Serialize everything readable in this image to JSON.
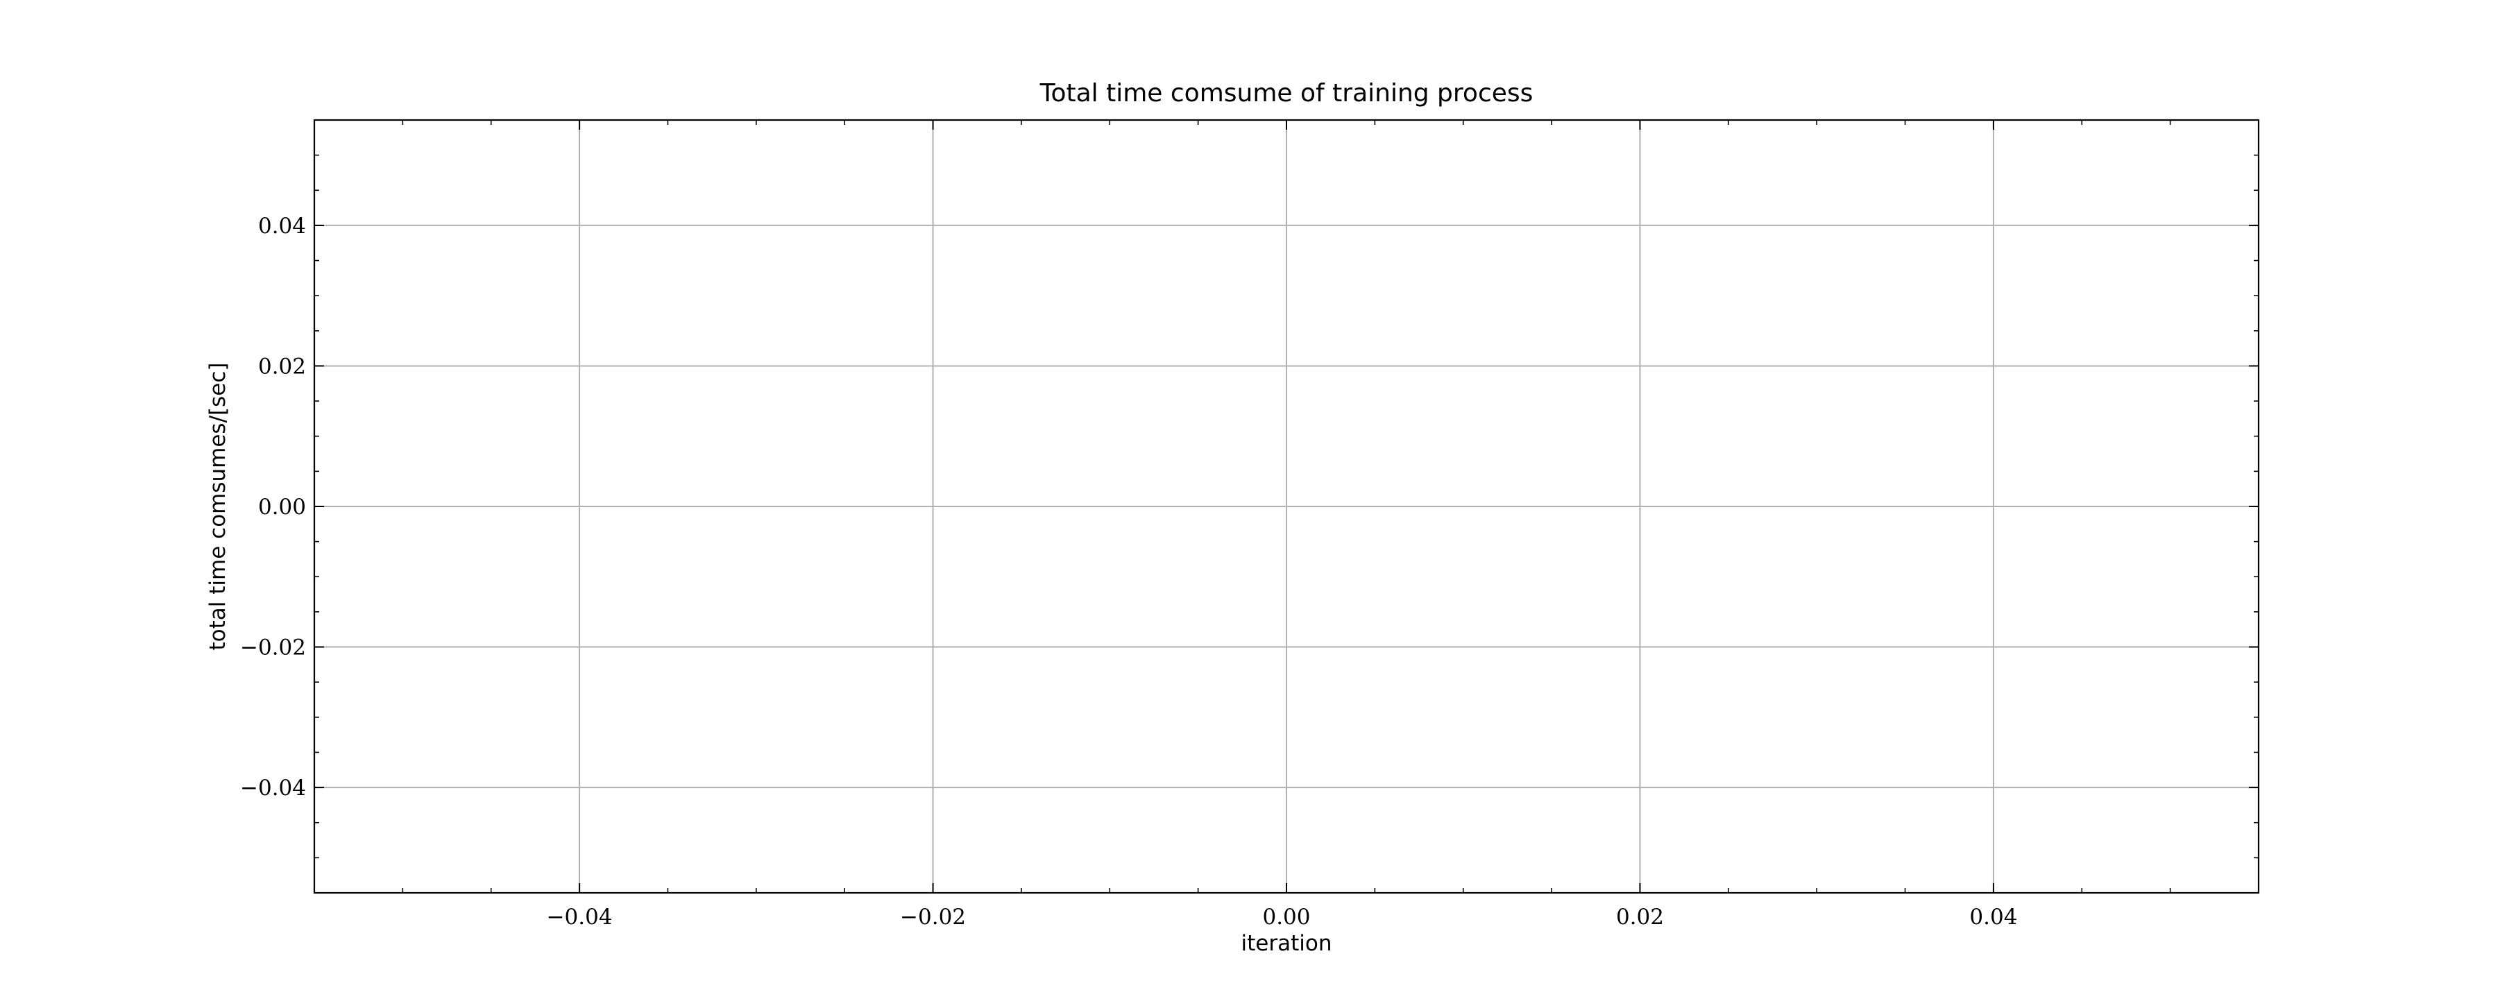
{
  "chart_data": {
    "type": "line",
    "title": "Total time comsume of training process",
    "xlabel": "iteration",
    "ylabel": "total time comsumes/[sec]",
    "xlim": [
      -0.055,
      0.055
    ],
    "ylim": [
      -0.055,
      0.055
    ],
    "xticks": [
      -0.04,
      -0.02,
      0.0,
      0.02,
      0.04
    ],
    "yticks": [
      -0.04,
      -0.02,
      0.0,
      0.02,
      0.04
    ],
    "xtick_labels": [
      "−0.04",
      "−0.02",
      "0.00",
      "0.02",
      "0.04"
    ],
    "ytick_labels": [
      "−0.04",
      "−0.02",
      "0.00",
      "0.02",
      "0.04"
    ],
    "x_minor_step": 0.005,
    "y_minor_step": 0.005,
    "grid": true,
    "series": [],
    "colors": {
      "grid": "#b0b0b0",
      "axes": "#000000",
      "background": "#ffffff"
    }
  }
}
